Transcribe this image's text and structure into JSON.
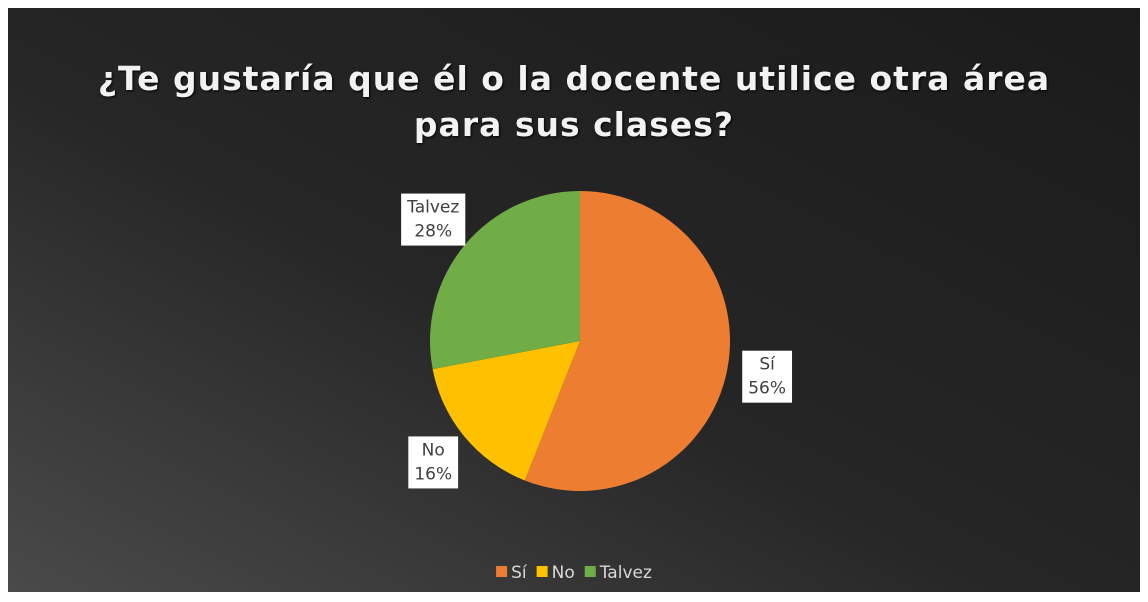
{
  "chart_data": {
    "type": "pie",
    "title": "¿Te gustaría que él o la docente utilice otra área para sus clases?",
    "categories": [
      "Sí",
      "No",
      "Talvez"
    ],
    "values": [
      56,
      16,
      28
    ],
    "value_labels": [
      "56%",
      "16%",
      "28%"
    ],
    "colors": [
      "#ed7d31",
      "#ffc000",
      "#70ad47"
    ],
    "legend": "bottom"
  }
}
